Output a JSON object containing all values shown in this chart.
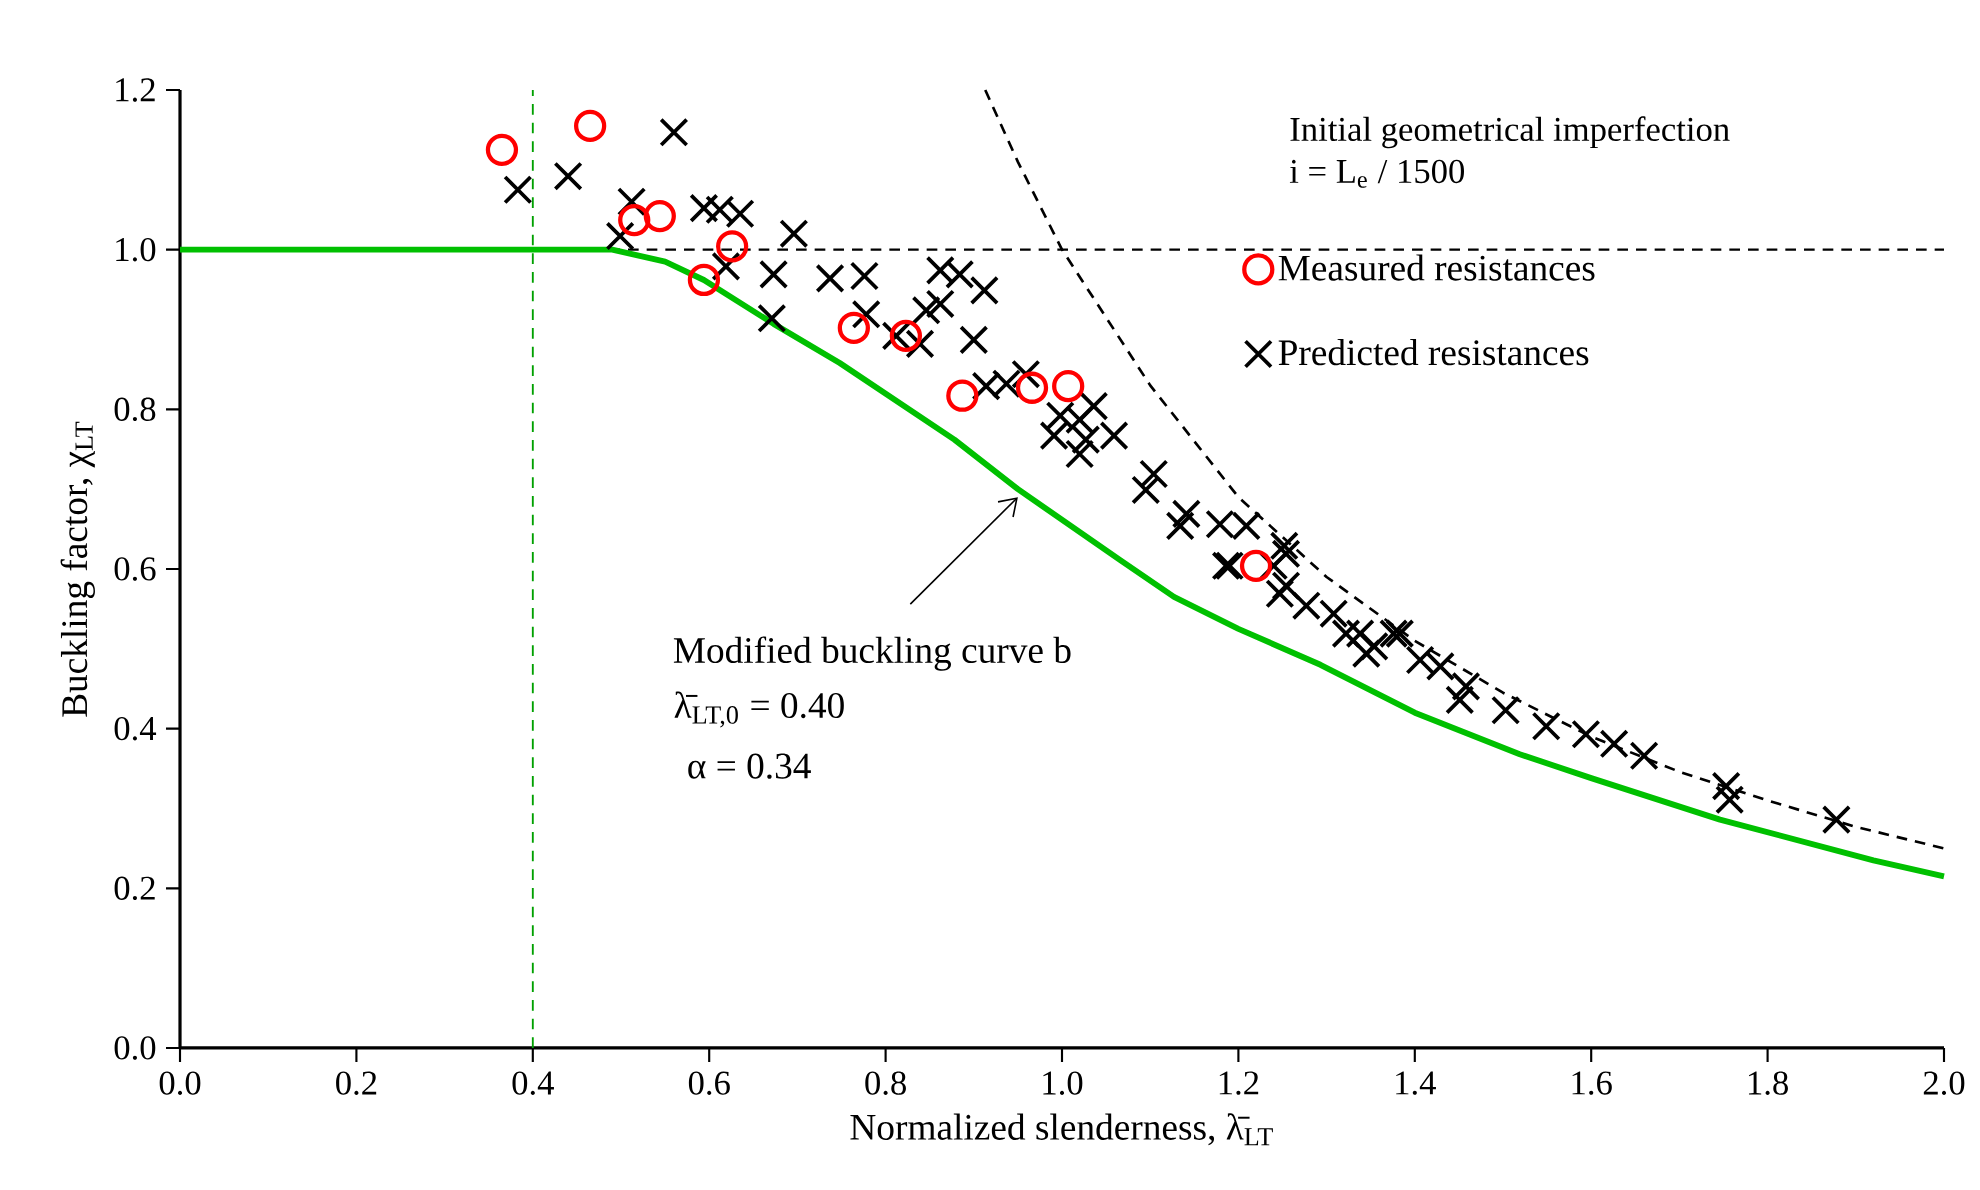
{
  "chart_data": {
    "type": "scatter",
    "xlabel": "Normalized slenderness, λ̄$_{LT}$",
    "ylabel": "Buckling factor, χ$_{LT}$",
    "xlim": [
      0,
      2.0
    ],
    "ylim": [
      0,
      1.2
    ],
    "xticks": [
      {
        "value": 0,
        "label": "0.0"
      },
      {
        "value": 0.2,
        "label": "0.2"
      },
      {
        "value": 0.4,
        "label": "0.4"
      },
      {
        "value": 0.6,
        "label": "0.6"
      },
      {
        "value": 0.8,
        "label": "0.8"
      },
      {
        "value": 1.0,
        "label": "1.0"
      },
      {
        "value": 1.2,
        "label": "1.2"
      },
      {
        "value": 1.4,
        "label": "1.4"
      },
      {
        "value": 1.6,
        "label": "1.6"
      },
      {
        "value": 1.8,
        "label": "1.8"
      },
      {
        "value": 2.0,
        "label": "2.0"
      }
    ],
    "yticks": [
      {
        "value": 0,
        "label": "0.0"
      },
      {
        "value": 0.2,
        "label": "0.2"
      },
      {
        "value": 0.4,
        "label": "0.4"
      },
      {
        "value": 0.6,
        "label": "0.6"
      },
      {
        "value": 0.8,
        "label": "0.8"
      },
      {
        "value": 1.0,
        "label": "1.0"
      },
      {
        "value": 1.2,
        "label": "1.2"
      }
    ],
    "grid": false,
    "legend": "right",
    "series": [
      {
        "type": "line",
        "color": "#000000",
        "line_style": "dashed",
        "marker": "none",
        "x": [
          0.913,
          0.95,
          1.0,
          1.1,
          1.2,
          1.3,
          1.4,
          1.5,
          1.6,
          1.7,
          1.8,
          1.9,
          2.0
        ],
        "values": [
          1.2,
          1.11,
          1.0,
          0.83,
          0.69,
          0.59,
          0.51,
          0.445,
          0.39,
          0.346,
          0.31,
          0.277,
          0.25
        ]
      },
      {
        "type": "line",
        "color": "#00c000",
        "line_style": "solid",
        "marker": "none",
        "x": [
          0,
          0.49,
          0.55,
          0.594,
          0.673,
          0.748,
          0.878,
          0.95,
          1.066,
          1.127,
          1.2,
          1.293,
          1.4,
          1.519,
          1.6,
          1.746,
          1.92,
          2.0
        ],
        "values": [
          1.0,
          1.0,
          0.985,
          0.962,
          0.907,
          0.858,
          0.762,
          0.7,
          0.611,
          0.565,
          0.525,
          0.48,
          0.42,
          0.368,
          0.338,
          0.286,
          0.235,
          0.215
        ]
      },
      {
        "name": "Measured resistances",
        "color": "#ff0000",
        "marker": "circle",
        "x": [
          0.365,
          0.465,
          0.515,
          0.544,
          0.594,
          0.626,
          0.764,
          0.823,
          0.887,
          0.966,
          1.007,
          1.22
        ],
        "values": [
          1.125,
          1.155,
          1.037,
          1.042,
          0.962,
          1.004,
          0.902,
          0.892,
          0.817,
          0.827,
          0.829,
          0.604
        ]
      },
      {
        "name": "Predicted resistances",
        "color": "#000000",
        "marker": "cross",
        "x": [
          0.383,
          0.44,
          0.56,
          0.512,
          0.499,
          0.594,
          0.635,
          0.612,
          0.696,
          0.619,
          0.673,
          0.671,
          0.737,
          0.776,
          0.778,
          0.812,
          0.839,
          0.862,
          0.884,
          0.912,
          0.862,
          0.846,
          0.9,
          0.914,
          0.937,
          0.959,
          1.036,
          1.02,
          0.998,
          0.991,
          1.027,
          1.059,
          1.02,
          1.104,
          1.095,
          1.141,
          1.179,
          1.209,
          1.19,
          1.24,
          1.252,
          1.254,
          1.277,
          1.308,
          1.338,
          1.354,
          1.376,
          1.406,
          1.134,
          1.186,
          1.254,
          1.247,
          1.322,
          1.345,
          1.383,
          1.429,
          1.458,
          1.451,
          1.503,
          1.549,
          1.594,
          1.626,
          1.66,
          1.753,
          1.757,
          1.878
        ],
        "values": [
          1.075,
          1.092,
          1.147,
          1.06,
          1.017,
          1.052,
          1.045,
          1.05,
          1.02,
          0.979,
          0.969,
          0.914,
          0.964,
          0.967,
          0.919,
          0.892,
          0.882,
          0.974,
          0.969,
          0.949,
          0.932,
          0.924,
          0.887,
          0.829,
          0.832,
          0.844,
          0.804,
          0.787,
          0.792,
          0.767,
          0.762,
          0.767,
          0.744,
          0.719,
          0.699,
          0.669,
          0.656,
          0.654,
          0.604,
          0.604,
          0.629,
          0.579,
          0.554,
          0.544,
          0.519,
          0.503,
          0.519,
          0.486,
          0.654,
          0.604,
          0.619,
          0.569,
          0.519,
          0.494,
          0.519,
          0.478,
          0.453,
          0.436,
          0.423,
          0.403,
          0.393,
          0.381,
          0.366,
          0.328,
          0.311,
          0.286
        ]
      }
    ],
    "ref_lines": [
      {
        "axis": "y",
        "value": 1.0,
        "color": "#000000",
        "line_style": "dashed"
      },
      {
        "axis": "x",
        "value": 0.4,
        "color": "#00a000",
        "line_style": "dashed"
      }
    ],
    "annotations": [
      "Initial geometrical imperfection",
      "i = L$_{e}$ / 1500",
      {
        "text": "Modified buckling curve b",
        "x": 0.95,
        "y": 0.69
      },
      "λ̄$_{LT,0}$ = 0.40",
      "α = 0.34"
    ]
  }
}
